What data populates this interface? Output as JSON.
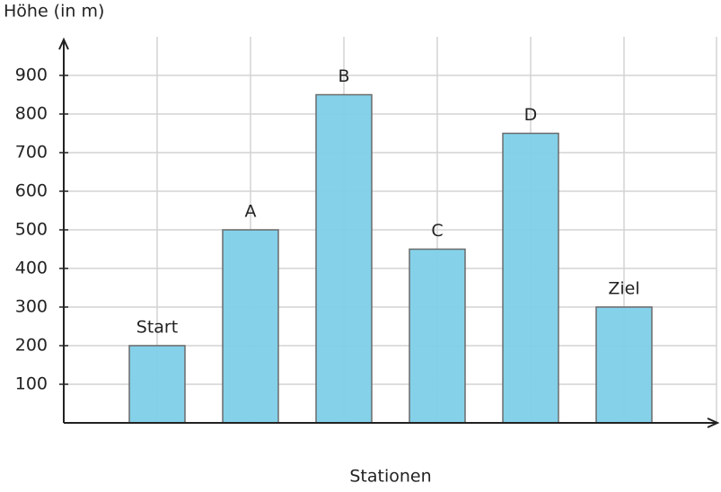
{
  "chart_data": {
    "type": "bar",
    "y_label": "Höhe (in m)",
    "x_label": "Stationen",
    "categories": [
      "Start",
      "A",
      "B",
      "C",
      "D",
      "Ziel"
    ],
    "values": [
      200,
      500,
      850,
      450,
      750,
      300
    ],
    "color": "#7ecfe8",
    "ylim": [
      0,
      1000
    ],
    "yticks": [
      100,
      200,
      300,
      400,
      500,
      600,
      700,
      800,
      900
    ],
    "grid": true
  }
}
